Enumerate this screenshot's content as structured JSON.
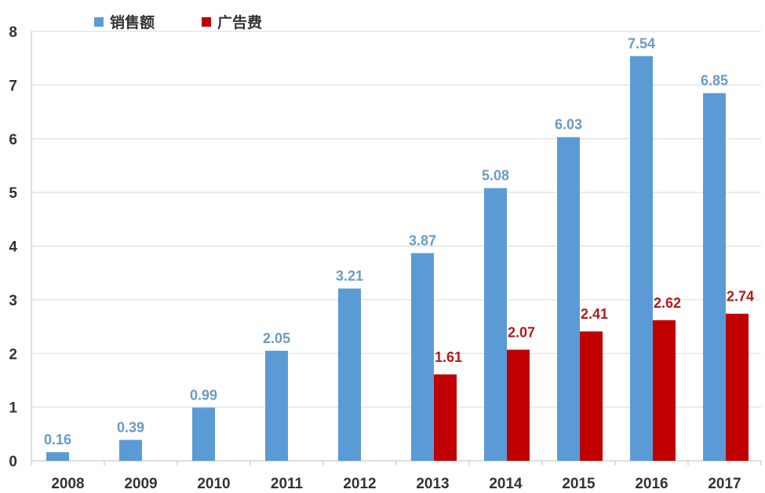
{
  "chart_data": {
    "type": "bar",
    "categories": [
      "2008",
      "2009",
      "2010",
      "2011",
      "2012",
      "2013",
      "2014",
      "2015",
      "2016",
      "2017"
    ],
    "series": [
      {
        "name": "销售额",
        "color": "#5b9bd5",
        "values": [
          0.16,
          0.39,
          0.99,
          2.05,
          3.21,
          3.87,
          5.08,
          6.03,
          7.54,
          6.85
        ],
        "labels": [
          "0.16",
          "0.39",
          "0.99",
          "2.05",
          "3.21",
          "3.87",
          "5.08",
          "6.03",
          "7.54",
          "6.85"
        ]
      },
      {
        "name": "广告费",
        "color": "#c00000",
        "values": [
          null,
          null,
          null,
          null,
          null,
          1.61,
          2.07,
          2.41,
          2.62,
          2.74
        ],
        "labels": [
          "",
          "",
          "",
          "",
          "",
          "1.61",
          "2.07",
          "2.41",
          "2.62",
          "2.74"
        ]
      }
    ],
    "ylim": [
      0,
      8
    ],
    "yticks": [
      "0",
      "1",
      "2",
      "3",
      "4",
      "5",
      "6",
      "7",
      "8"
    ],
    "grid": true,
    "legend": "top-left",
    "label_colors": {
      "sales": "#6a9bc4",
      "ads": "#b01c1c"
    }
  }
}
